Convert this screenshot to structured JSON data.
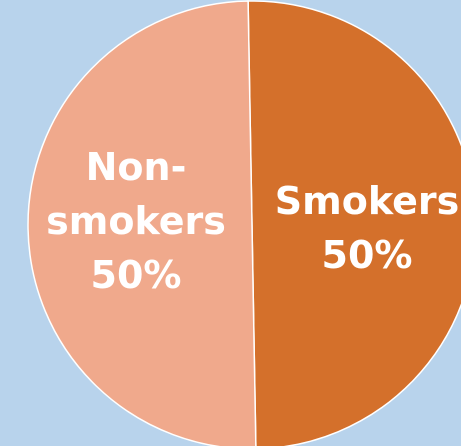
{
  "chart_data": {
    "type": "pie",
    "title": "",
    "categories": [
      "Smokers",
      "Non-smokers"
    ],
    "values": [
      50,
      50
    ],
    "colors": [
      "#d4702b",
      "#f0a98c"
    ],
    "data_labels": [
      {
        "lines": [
          "Smokers",
          "50%"
        ]
      },
      {
        "lines": [
          "Non-",
          "smokers",
          "50%"
        ]
      }
    ],
    "background_color": "#b8d3ec",
    "slice_border_color": "#ffffff",
    "legend": "none"
  }
}
